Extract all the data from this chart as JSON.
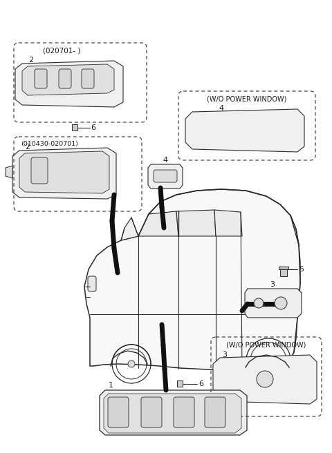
{
  "bg_color": "#ffffff",
  "line_color": "#2a2a2a",
  "dash_color": "#444444",
  "text_color": "#1a1a1a",
  "fig_width": 4.8,
  "fig_height": 6.56,
  "dpi": 100,
  "labels": {
    "top_left_box": "(020701- )",
    "mid_left_box": "(010430-020701)",
    "top_right_box": "(W/O POWER WINDOW)",
    "bot_right_box": "(W/O POWER WINDOW)"
  }
}
